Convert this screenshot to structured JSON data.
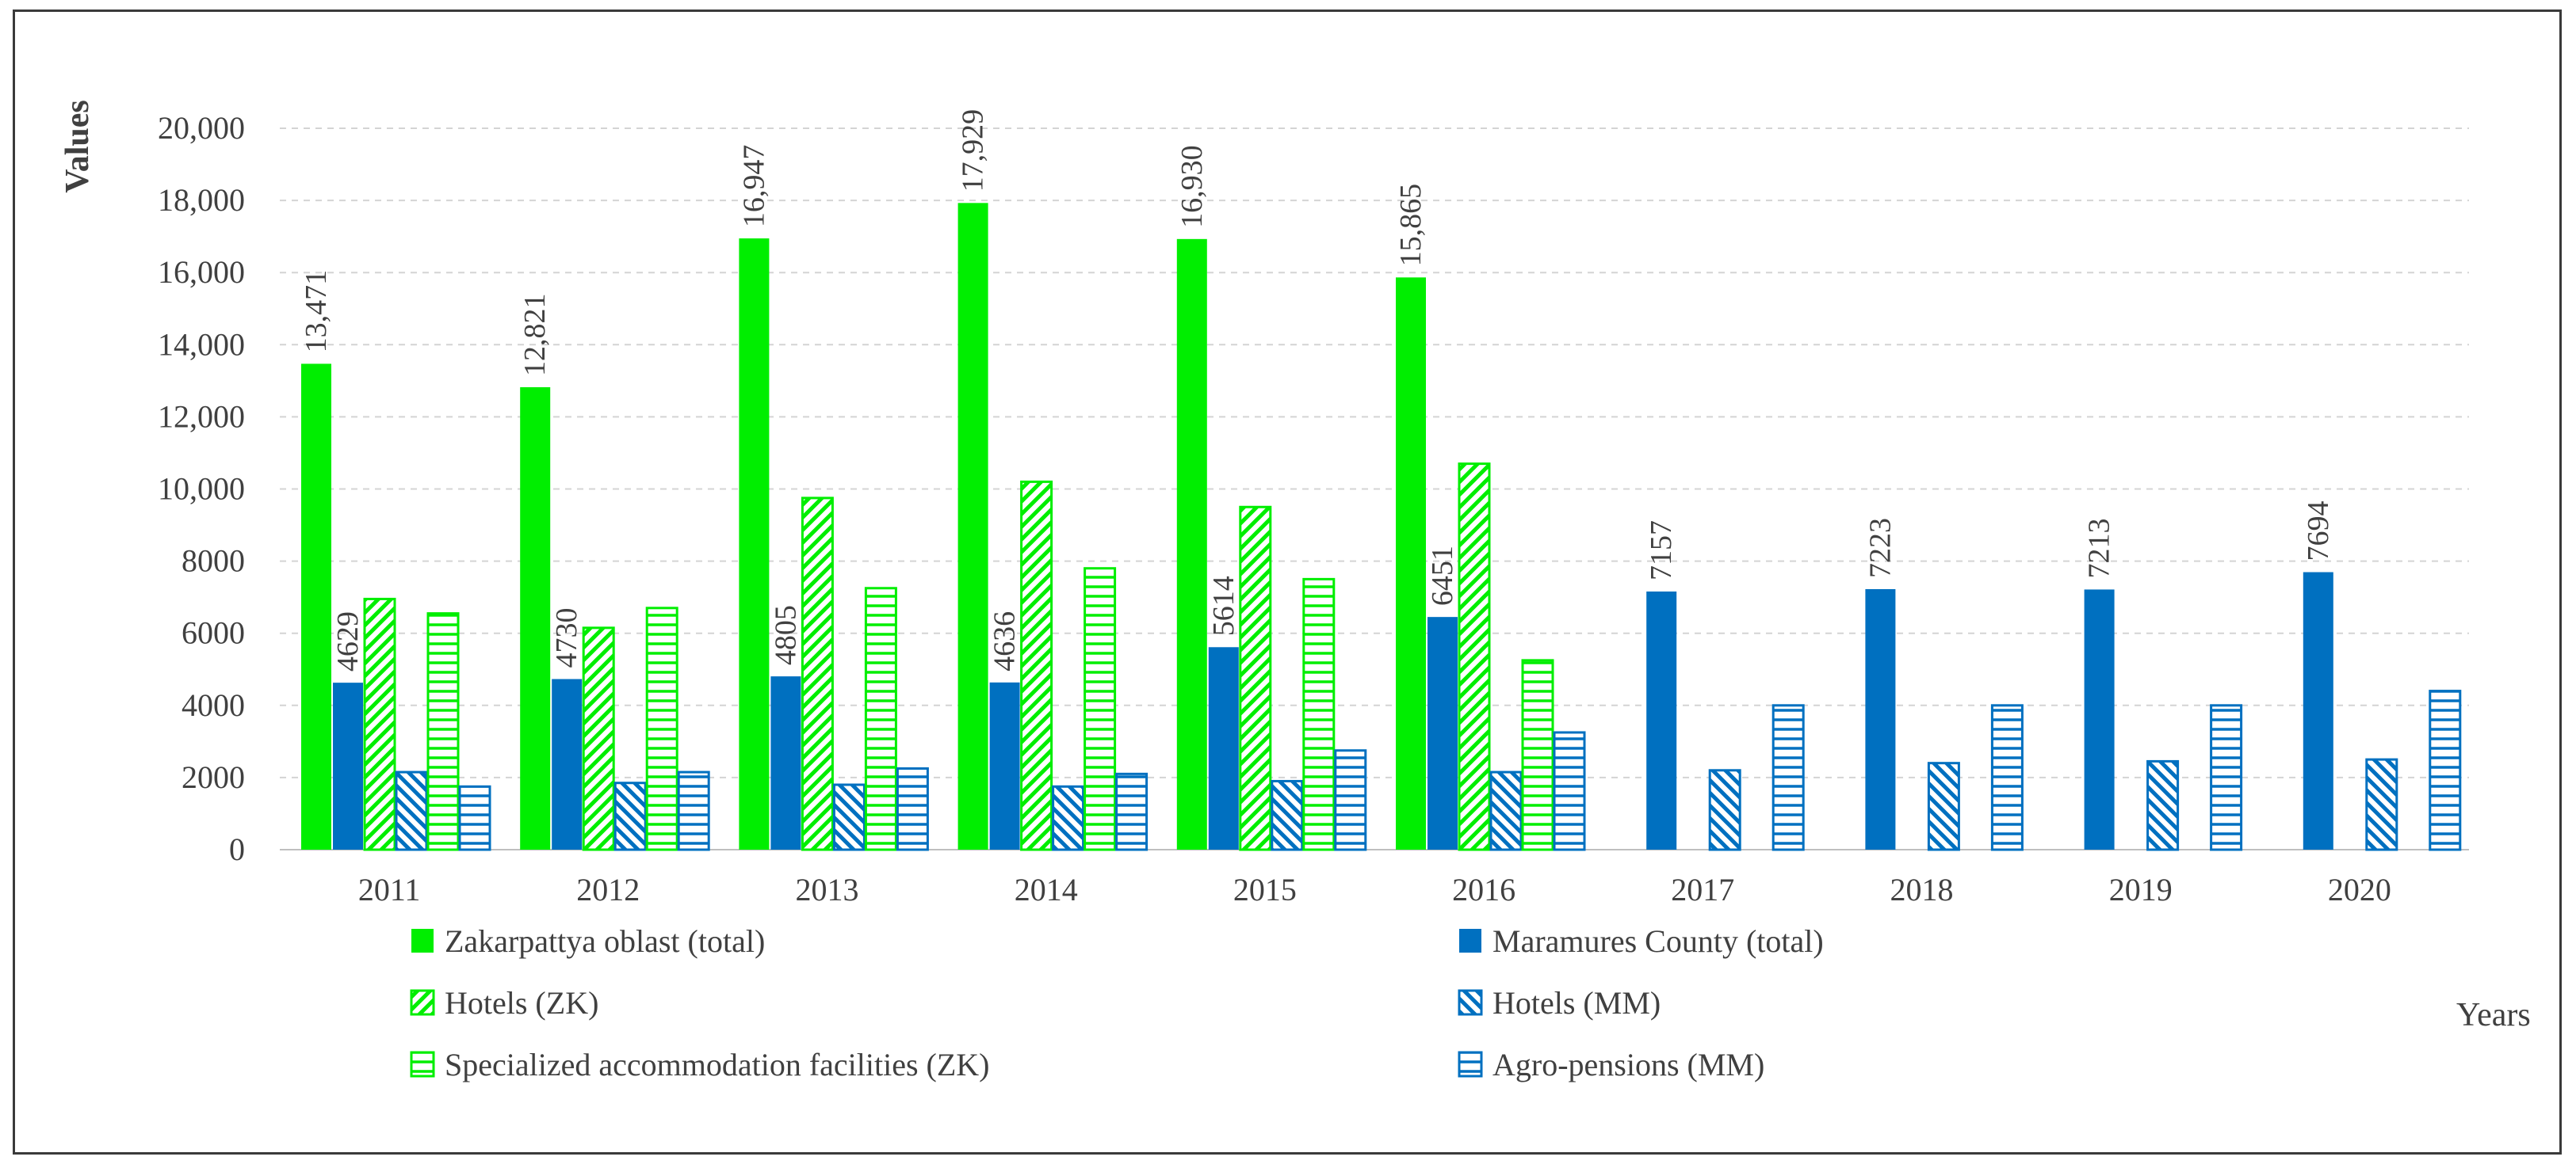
{
  "chart_data": {
    "type": "bar",
    "title": "",
    "xlabel": "Years",
    "ylabel": "Values",
    "ylim": [
      0,
      20000
    ],
    "yticks": [
      {
        "value": 0,
        "label": "0"
      },
      {
        "value": 2000,
        "label": "2000"
      },
      {
        "value": 4000,
        "label": "4000"
      },
      {
        "value": 6000,
        "label": "6000"
      },
      {
        "value": 8000,
        "label": "8000"
      },
      {
        "value": 10000,
        "label": "10,000"
      },
      {
        "value": 12000,
        "label": "12,000"
      },
      {
        "value": 14000,
        "label": "14,000"
      },
      {
        "value": 16000,
        "label": "16,000"
      },
      {
        "value": 18000,
        "label": "18,000"
      },
      {
        "value": 20000,
        "label": "20,000"
      }
    ],
    "grid": true,
    "legend_position": "bottom",
    "categories": [
      "2011",
      "2012",
      "2013",
      "2014",
      "2015",
      "2016",
      "2017",
      "2018",
      "2019",
      "2020"
    ],
    "series": [
      {
        "key": "zk-total",
        "name": "Zakarpattya oblast (total)",
        "color": "#00ee00",
        "pattern": "solid",
        "values": [
          13471,
          12821,
          16947,
          17929,
          16930,
          15865,
          null,
          null,
          null,
          null
        ],
        "labels": [
          "13,471",
          "12,821",
          "16,947",
          "17,929",
          "16,930",
          "15,865",
          null,
          null,
          null,
          null
        ]
      },
      {
        "key": "mm-total",
        "name": "Maramures County (total)",
        "color": "#0070c0",
        "pattern": "solid",
        "values": [
          4629,
          4730,
          4805,
          4636,
          5614,
          6451,
          7157,
          7223,
          7213,
          7694
        ],
        "labels": [
          "4629",
          "4730",
          "4805",
          "4636",
          "5614",
          "6451",
          "7157",
          "7223",
          "7213",
          "7694"
        ]
      },
      {
        "key": "zk-hotels",
        "name": "Hotels (ZK)",
        "color": "#00ee00",
        "pattern": "diagonal",
        "values": [
          6950,
          6150,
          9750,
          10200,
          9500,
          10700,
          null,
          null,
          null,
          null
        ]
      },
      {
        "key": "mm-hotels",
        "name": "Hotels (MM)",
        "color": "#0070c0",
        "pattern": "diagonal",
        "values": [
          2150,
          1850,
          1800,
          1750,
          1900,
          2150,
          2200,
          2400,
          2450,
          2500
        ]
      },
      {
        "key": "zk-specialized",
        "name": "Specialized accommodation facilities (ZK)",
        "color": "#00ee00",
        "pattern": "horizontal",
        "values": [
          6550,
          6700,
          7250,
          7800,
          7500,
          5250,
          null,
          null,
          null,
          null
        ]
      },
      {
        "key": "mm-agro",
        "name": "Agro-pensions (MM)",
        "color": "#0070c0",
        "pattern": "horizontal",
        "values": [
          1750,
          2150,
          2250,
          2100,
          2750,
          3250,
          4000,
          4000,
          4000,
          4400
        ]
      }
    ]
  }
}
